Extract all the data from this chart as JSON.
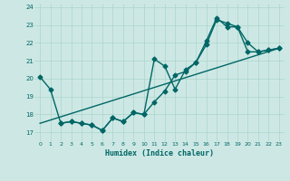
{
  "xlabel": "Humidex (Indice chaleur)",
  "background_color": "#cde8e4",
  "line_color": "#006666",
  "grid_color": "#aad4ce",
  "xlim": [
    -0.5,
    23.5
  ],
  "ylim": [
    16.5,
    24.2
  ],
  "yticks": [
    17,
    18,
    19,
    20,
    21,
    22,
    23,
    24
  ],
  "xticks": [
    0,
    1,
    2,
    3,
    4,
    5,
    6,
    7,
    8,
    9,
    10,
    11,
    12,
    13,
    14,
    15,
    16,
    17,
    18,
    19,
    20,
    21,
    22,
    23
  ],
  "line1_x": [
    0,
    1,
    2,
    3,
    4,
    5,
    6,
    7,
    8,
    9,
    10,
    11,
    12,
    13,
    14,
    15,
    16,
    17,
    18,
    19,
    20,
    21,
    22,
    23
  ],
  "line1_y": [
    20.1,
    19.4,
    17.5,
    17.6,
    17.5,
    17.4,
    17.1,
    17.8,
    17.6,
    18.1,
    18.0,
    18.7,
    19.3,
    20.2,
    20.4,
    20.9,
    21.9,
    23.3,
    23.1,
    22.9,
    21.5,
    21.5,
    21.6,
    21.7
  ],
  "line2_x": [
    2,
    3,
    4,
    5,
    6,
    7,
    8,
    9,
    10,
    11,
    12,
    13,
    14,
    15,
    16,
    17,
    18,
    19,
    20,
    21,
    22,
    23
  ],
  "line2_y": [
    17.5,
    17.6,
    17.5,
    17.4,
    17.1,
    17.8,
    17.6,
    18.1,
    18.0,
    21.1,
    20.7,
    19.4,
    20.5,
    20.9,
    22.1,
    23.4,
    22.9,
    22.9,
    22.0,
    21.5,
    21.6,
    21.7
  ],
  "line3_x": [
    0,
    23
  ],
  "line3_y": [
    17.5,
    21.7
  ],
  "marker": "D",
  "markersize": 2.5,
  "linewidth": 1.0
}
